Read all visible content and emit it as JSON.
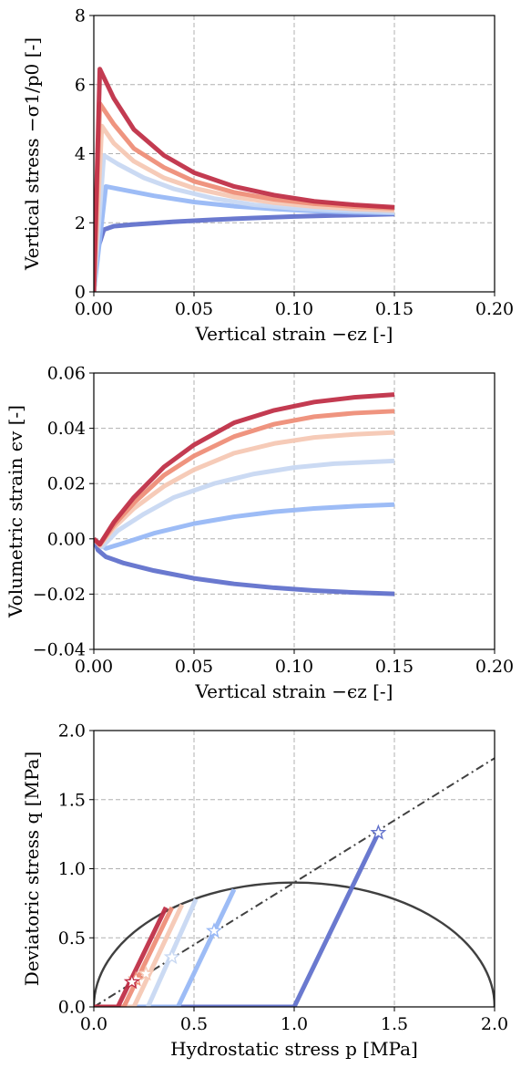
{
  "chart_data": [
    {
      "type": "line",
      "xlabel": "Vertical strain −ϵz [-]",
      "ylabel": "Vertical stress −σ1/p0 [-]",
      "xlim": [
        0,
        0.2
      ],
      "ylim": [
        0,
        8
      ],
      "xticks": [
        "0.00",
        "0.05",
        "0.10",
        "0.15",
        "0.20"
      ],
      "yticks": [
        "0",
        "2",
        "4",
        "6",
        "8"
      ],
      "grid": true,
      "series": [
        {
          "color": "#c03048",
          "x": [
            0,
            0.003,
            0.01,
            0.02,
            0.035,
            0.05,
            0.07,
            0.09,
            0.11,
            0.13,
            0.15
          ],
          "y": [
            0,
            6.45,
            5.6,
            4.7,
            3.95,
            3.45,
            3.05,
            2.8,
            2.62,
            2.52,
            2.45
          ]
        },
        {
          "color": "#ee8e78",
          "x": [
            0,
            0.003,
            0.01,
            0.02,
            0.035,
            0.05,
            0.07,
            0.09,
            0.11,
            0.13,
            0.15
          ],
          "y": [
            0,
            5.45,
            4.85,
            4.15,
            3.6,
            3.2,
            2.88,
            2.68,
            2.55,
            2.47,
            2.42
          ]
        },
        {
          "color": "#f5c8b4",
          "x": [
            0,
            0.004,
            0.01,
            0.02,
            0.035,
            0.05,
            0.07,
            0.09,
            0.11,
            0.13,
            0.15
          ],
          "y": [
            0,
            4.8,
            4.3,
            3.78,
            3.3,
            3.0,
            2.75,
            2.58,
            2.47,
            2.4,
            2.36
          ]
        },
        {
          "color": "#c8d8f2",
          "x": [
            0,
            0.005,
            0.012,
            0.025,
            0.04,
            0.06,
            0.08,
            0.1,
            0.12,
            0.15
          ],
          "y": [
            0,
            3.95,
            3.7,
            3.3,
            2.98,
            2.7,
            2.52,
            2.42,
            2.36,
            2.3
          ]
        },
        {
          "color": "#98b8f5",
          "x": [
            0,
            0.006,
            0.015,
            0.03,
            0.05,
            0.07,
            0.09,
            0.11,
            0.13,
            0.15
          ],
          "y": [
            0,
            3.05,
            2.95,
            2.78,
            2.6,
            2.48,
            2.4,
            2.34,
            2.3,
            2.28
          ]
        },
        {
          "color": "#6272cc",
          "x": [
            0,
            0.002,
            0.005,
            0.01,
            0.02,
            0.04,
            0.06,
            0.08,
            0.1,
            0.12,
            0.15
          ],
          "y": [
            0,
            1.25,
            1.8,
            1.9,
            1.95,
            2.03,
            2.09,
            2.14,
            2.18,
            2.21,
            2.25
          ]
        }
      ]
    },
    {
      "type": "line",
      "xlabel": "Vertical strain −ϵz [-]",
      "ylabel": "Volumetric strain ϵv [-]",
      "xlim": [
        0,
        0.2
      ],
      "ylim": [
        -0.04,
        0.06
      ],
      "xticks": [
        "0.00",
        "0.05",
        "0.10",
        "0.15",
        "0.20"
      ],
      "yticks": [
        "−0.04",
        "−0.02",
        "0.00",
        "0.02",
        "0.04",
        "0.06"
      ],
      "grid": true,
      "series": [
        {
          "color": "#c03048",
          "x": [
            0,
            0.003,
            0.01,
            0.02,
            0.035,
            0.05,
            0.07,
            0.09,
            0.11,
            0.13,
            0.15
          ],
          "y": [
            0,
            -0.002,
            0.006,
            0.015,
            0.026,
            0.034,
            0.042,
            0.0465,
            0.0495,
            0.0512,
            0.0522
          ]
        },
        {
          "color": "#ee8e78",
          "x": [
            0,
            0.003,
            0.01,
            0.02,
            0.035,
            0.05,
            0.07,
            0.09,
            0.11,
            0.13,
            0.15
          ],
          "y": [
            0,
            -0.002,
            0.005,
            0.013,
            0.023,
            0.03,
            0.037,
            0.0415,
            0.0442,
            0.0455,
            0.0462
          ]
        },
        {
          "color": "#f5c8b4",
          "x": [
            0,
            0.003,
            0.01,
            0.02,
            0.035,
            0.05,
            0.07,
            0.09,
            0.11,
            0.13,
            0.15
          ],
          "y": [
            0,
            -0.0025,
            0.004,
            0.011,
            0.019,
            0.025,
            0.031,
            0.0345,
            0.0367,
            0.0378,
            0.0385
          ]
        },
        {
          "color": "#c8d8f2",
          "x": [
            0,
            0.004,
            0.012,
            0.025,
            0.04,
            0.06,
            0.08,
            0.1,
            0.12,
            0.15
          ],
          "y": [
            0,
            -0.003,
            0.003,
            0.009,
            0.015,
            0.02,
            0.0235,
            0.0258,
            0.0272,
            0.0282
          ]
        },
        {
          "color": "#98b8f5",
          "x": [
            0,
            0.006,
            0.015,
            0.03,
            0.05,
            0.07,
            0.09,
            0.11,
            0.13,
            0.15
          ],
          "y": [
            0,
            -0.0035,
            -0.0015,
            0.002,
            0.0055,
            0.008,
            0.0098,
            0.011,
            0.0118,
            0.0124
          ]
        },
        {
          "color": "#6272cc",
          "x": [
            0,
            0.002,
            0.006,
            0.015,
            0.03,
            0.05,
            0.07,
            0.09,
            0.11,
            0.13,
            0.15
          ],
          "y": [
            0,
            -0.004,
            -0.0065,
            -0.0088,
            -0.0115,
            -0.0143,
            -0.0163,
            -0.0177,
            -0.0187,
            -0.0194,
            -0.0199
          ]
        }
      ]
    },
    {
      "type": "line",
      "xlabel": "Hydrostatic stress p [MPa]",
      "ylabel": "Deviatoric stress q [MPa]",
      "xlim": [
        0,
        2
      ],
      "ylim": [
        0,
        2
      ],
      "xticks": [
        "0.0",
        "0.5",
        "1.0",
        "1.5",
        "2.0"
      ],
      "yticks": [
        "0.0",
        "0.5",
        "1.0",
        "1.5",
        "2.0"
      ],
      "grid": true,
      "yield_ellipse": {
        "p_center": 1.0,
        "p_radius": 1.0,
        "q_max": 0.9,
        "color": "#404040"
      },
      "critical_state_line": {
        "x": [
          0,
          2
        ],
        "y": [
          0,
          1.8
        ],
        "color": "#404040"
      },
      "series": [
        {
          "color": "#c03048",
          "x": [
            0,
            0.12,
            0.36
          ],
          "y": [
            0,
            0,
            0.72
          ],
          "star": [
            0.19,
            0.18
          ]
        },
        {
          "color": "#ee8e78",
          "x": [
            0,
            0.15,
            0.39
          ],
          "y": [
            0,
            0,
            0.72
          ],
          "star": [
            0.21,
            0.2
          ]
        },
        {
          "color": "#f5c8b4",
          "x": [
            0,
            0.2,
            0.44
          ],
          "y": [
            0,
            0,
            0.74
          ],
          "star": [
            0.26,
            0.24
          ]
        },
        {
          "color": "#c8d8f2",
          "x": [
            0.27,
            0.51
          ],
          "y": [
            0,
            0.78
          ],
          "star": [
            0.39,
            0.36
          ]
        },
        {
          "color": "#98b8f5",
          "x": [
            0,
            0.42,
            0.7
          ],
          "y": [
            0,
            0,
            0.85
          ],
          "star": [
            0.6,
            0.55
          ]
        },
        {
          "color": "#6272cc",
          "x": [
            0,
            1.0,
            1.42
          ],
          "y": [
            0,
            0,
            1.26
          ],
          "star": [
            1.42,
            1.26
          ]
        }
      ]
    }
  ]
}
